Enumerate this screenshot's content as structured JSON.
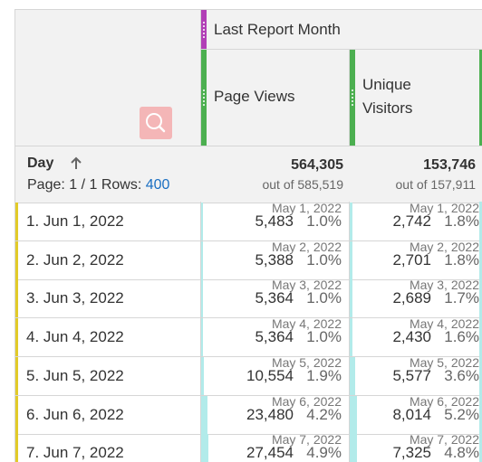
{
  "header": {
    "group_label": "Last Report Month",
    "columns": [
      {
        "lines": [
          "Page Views"
        ]
      },
      {
        "lines": [
          "Unique",
          "Visitors"
        ]
      }
    ]
  },
  "dimension": {
    "title": "Day",
    "sort": "ascending",
    "pager_text": "Page: 1 / 1 Rows:",
    "rows_value": "400"
  },
  "totals": [
    {
      "value": "564,305",
      "out_of": "out of 585,519"
    },
    {
      "value": "153,746",
      "out_of": "out of 157,911"
    }
  ],
  "rows": [
    {
      "label": "1.  Jun 1, 2022",
      "cells": [
        {
          "date": "May 1, 2022",
          "value": "5,483",
          "pct": "1.0%",
          "fill": 0.01
        },
        {
          "date": "May 1, 2022",
          "value": "2,742",
          "pct": "1.8%",
          "fill": 0.018
        }
      ]
    },
    {
      "label": "2.  Jun 2, 2022",
      "cells": [
        {
          "date": "May 2, 2022",
          "value": "5,388",
          "pct": "1.0%",
          "fill": 0.01
        },
        {
          "date": "May 2, 2022",
          "value": "2,701",
          "pct": "1.8%",
          "fill": 0.018
        }
      ]
    },
    {
      "label": "3.  Jun 3, 2022",
      "cells": [
        {
          "date": "May 3, 2022",
          "value": "5,364",
          "pct": "1.0%",
          "fill": 0.01
        },
        {
          "date": "May 3, 2022",
          "value": "2,689",
          "pct": "1.7%",
          "fill": 0.017
        }
      ]
    },
    {
      "label": "4.  Jun 4, 2022",
      "cells": [
        {
          "date": "May 4, 2022",
          "value": "5,364",
          "pct": "1.0%",
          "fill": 0.01
        },
        {
          "date": "May 4, 2022",
          "value": "2,430",
          "pct": "1.6%",
          "fill": 0.016
        }
      ]
    },
    {
      "label": "5.  Jun 5, 2022",
      "cells": [
        {
          "date": "May 5, 2022",
          "value": "10,554",
          "pct": "1.9%",
          "fill": 0.019
        },
        {
          "date": "May 5, 2022",
          "value": "5,577",
          "pct": "3.6%",
          "fill": 0.036
        }
      ]
    },
    {
      "label": "6.  Jun 6, 2022",
      "cells": [
        {
          "date": "May 6, 2022",
          "value": "23,480",
          "pct": "4.2%",
          "fill": 0.042
        },
        {
          "date": "May 6, 2022",
          "value": "8,014",
          "pct": "5.2%",
          "fill": 0.052
        }
      ]
    },
    {
      "label": "7.  Jun 7, 2022",
      "cells": [
        {
          "date": "May 7, 2022",
          "value": "27,454",
          "pct": "4.9%",
          "fill": 0.049
        },
        {
          "date": "May 7, 2022",
          "value": "7,325",
          "pct": "4.8%",
          "fill": 0.048
        }
      ]
    }
  ],
  "colors": {
    "row_marker": "#e2cb29",
    "bar_fill": "#b2ebea",
    "group_grip": "#b13fb6",
    "column_grip": "#4caf50",
    "search_button": "#f4b6b7",
    "rows_link": "#1a6fc2"
  },
  "icons": {
    "search": "search-icon",
    "sort": "arrow-up-icon"
  }
}
